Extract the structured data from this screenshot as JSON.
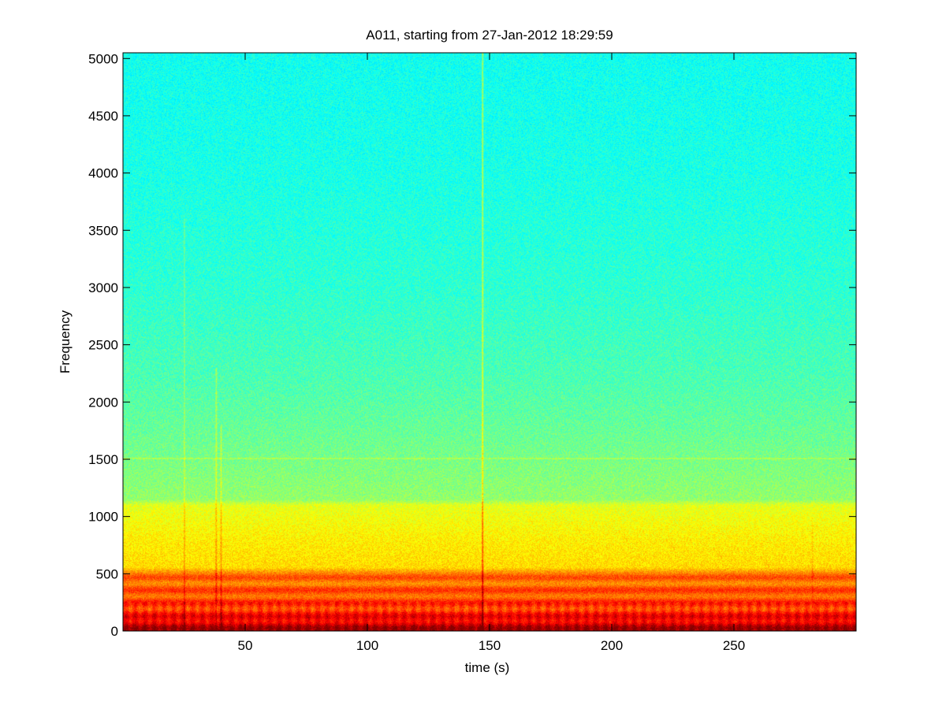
{
  "chart_data": {
    "type": "heatmap",
    "title": "A011, starting from 27-Jan-2012 18:29:59",
    "xlabel": "time (s)",
    "ylabel": "Frequency",
    "xlim": [
      0,
      300
    ],
    "ylim": [
      0,
      5050
    ],
    "xticks": [
      50,
      100,
      150,
      200,
      250
    ],
    "yticks": [
      0,
      500,
      1000,
      1500,
      2000,
      2500,
      3000,
      3500,
      4000,
      4500,
      5000
    ],
    "colormap": "jet",
    "color_scale_range": [
      0.0,
      1.0
    ],
    "grid": false,
    "intensity_profile_by_frequency": [
      {
        "frequency": 0,
        "level": 0.95
      },
      {
        "frequency": 60,
        "level": 0.93
      },
      {
        "frequency": 150,
        "level": 0.85
      },
      {
        "frequency": 300,
        "level": 0.8
      },
      {
        "frequency": 500,
        "level": 0.76
      },
      {
        "frequency": 560,
        "level": 0.66
      },
      {
        "frequency": 800,
        "level": 0.64
      },
      {
        "frequency": 1100,
        "level": 0.6
      },
      {
        "frequency": 1150,
        "level": 0.52
      },
      {
        "frequency": 1700,
        "level": 0.48
      },
      {
        "frequency": 2200,
        "level": 0.45
      },
      {
        "frequency": 3000,
        "level": 0.42
      },
      {
        "frequency": 4000,
        "level": 0.4
      },
      {
        "frequency": 5050,
        "level": 0.39
      }
    ],
    "horizontal_lines": [
      {
        "frequency": 1510,
        "level_boost": 0.08
      }
    ],
    "vertical_transients": [
      {
        "time": 25,
        "fmax": 3600,
        "level_boost": 0.1
      },
      {
        "time": 38,
        "fmax": 2300,
        "level_boost": 0.12
      },
      {
        "time": 40,
        "fmax": 1800,
        "level_boost": 0.1
      },
      {
        "time": 147,
        "fmax": 5050,
        "level_boost": 0.22
      },
      {
        "time": 282,
        "fmax": 1000,
        "level_boost": 0.05
      }
    ],
    "colors": {
      "background": "#ffffff",
      "axis": "#000000"
    }
  }
}
